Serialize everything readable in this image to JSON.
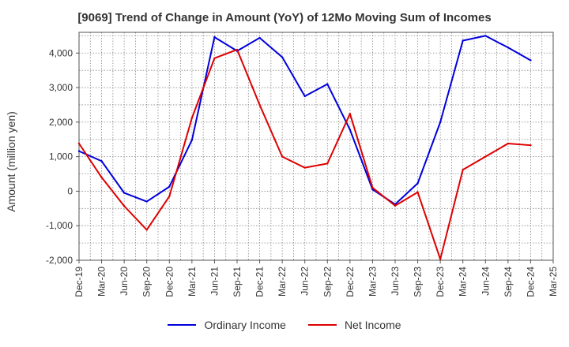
{
  "chart_data": {
    "type": "line",
    "title": "[9069]  Trend of Change in Amount (YoY) of 12Mo Moving Sum of Incomes",
    "xlabel": "",
    "ylabel": "Amount (million yen)",
    "ylim": [
      -2000,
      4600
    ],
    "yticks": [
      -2000,
      -1000,
      0,
      1000,
      2000,
      3000,
      4000
    ],
    "ytick_labels": [
      "-2,000",
      "-1,000",
      "0",
      "1,000",
      "2,000",
      "3,000",
      "4,000"
    ],
    "categories": [
      "Dec-19",
      "Mar-20",
      "Jun-20",
      "Sep-20",
      "Dec-20",
      "Mar-21",
      "Jun-21",
      "Sep-21",
      "Dec-21",
      "Mar-22",
      "Jun-22",
      "Sep-22",
      "Dec-22",
      "Mar-23",
      "Jun-23",
      "Sep-23",
      "Dec-23",
      "Mar-24",
      "Jun-24",
      "Sep-24",
      "Dec-24",
      "Mar-25"
    ],
    "grid": true,
    "legend_position": "bottom-center",
    "series": [
      {
        "name": "Ordinary Income",
        "color": "#0000dd",
        "values": [
          1160,
          870,
          -50,
          -300,
          130,
          1480,
          4460,
          4060,
          4440,
          3880,
          2750,
          3100,
          1780,
          50,
          -380,
          230,
          2000,
          4360,
          4500,
          4160,
          3790,
          null
        ]
      },
      {
        "name": "Net Income",
        "color": "#dd0000",
        "values": [
          1380,
          400,
          -430,
          -1120,
          -150,
          2120,
          3850,
          4100,
          2500,
          1000,
          680,
          800,
          2240,
          100,
          -420,
          -30,
          -1970,
          620,
          1000,
          1380,
          1330,
          null
        ]
      }
    ]
  }
}
